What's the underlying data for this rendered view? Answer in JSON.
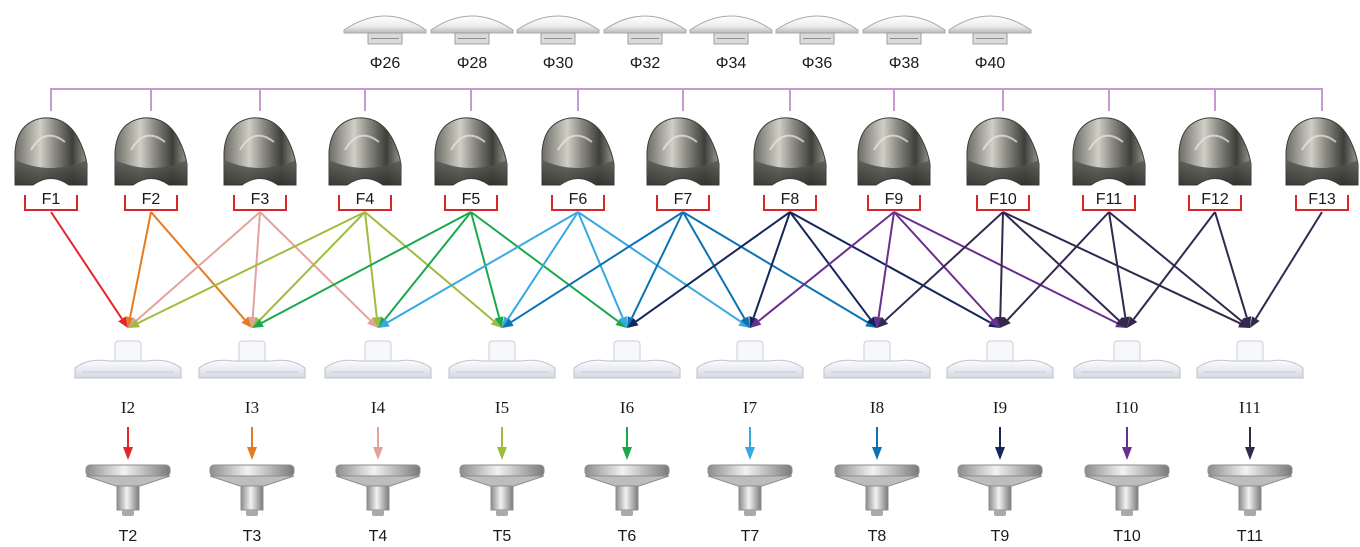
{
  "patella_components": {
    "labels": [
      "Φ26",
      "Φ28",
      "Φ30",
      "Φ32",
      "Φ34",
      "Φ36",
      "Φ38",
      "Φ40"
    ]
  },
  "femoral_components": {
    "labels": [
      "F1",
      "F2",
      "F3",
      "F4",
      "F5",
      "F6",
      "F7",
      "F8",
      "F9",
      "F10",
      "F11",
      "F12",
      "F13"
    ]
  },
  "insert_components": {
    "labels": [
      "I2",
      "I3",
      "I4",
      "I5",
      "I6",
      "I7",
      "I8",
      "I9",
      "I10",
      "I11"
    ]
  },
  "tibial_components": {
    "labels": [
      "T2",
      "T3",
      "T4",
      "T5",
      "T6",
      "T7",
      "T8",
      "T9",
      "T10",
      "T11"
    ]
  },
  "colors": {
    "patella_bracket": "#c49ad0",
    "femoral_bracket": "#d9262b",
    "femoral_arrows": [
      "#e3262b",
      "#e47b22",
      "#e3a39c",
      "#9dbd3e",
      "#1aa84f",
      "#36a9e1",
      "#0b73b4",
      "#14265c",
      "#6a2f8e",
      "#35284f",
      "#35284f",
      "#35284f",
      "#35284f"
    ],
    "insert_arrows": [
      "#e3262b",
      "#e47b22",
      "#e3a39c",
      "#9dbd3e",
      "#1aa84f",
      "#36a9e1",
      "#0b73b4",
      "#14265c",
      "#6a2f8e",
      "#35284f"
    ]
  },
  "compatibility": [
    {
      "femur": "F1",
      "inserts": [
        "I2"
      ]
    },
    {
      "femur": "F2",
      "inserts": [
        "I2",
        "I3"
      ]
    },
    {
      "femur": "F3",
      "inserts": [
        "I2",
        "I3",
        "I4"
      ]
    },
    {
      "femur": "F4",
      "inserts": [
        "I2",
        "I3",
        "I4",
        "I5"
      ]
    },
    {
      "femur": "F5",
      "inserts": [
        "I3",
        "I4",
        "I5",
        "I6"
      ]
    },
    {
      "femur": "F6",
      "inserts": [
        "I4",
        "I5",
        "I6",
        "I7"
      ]
    },
    {
      "femur": "F7",
      "inserts": [
        "I5",
        "I6",
        "I7",
        "I8"
      ]
    },
    {
      "femur": "F8",
      "inserts": [
        "I6",
        "I7",
        "I8",
        "I9"
      ]
    },
    {
      "femur": "F9",
      "inserts": [
        "I7",
        "I8",
        "I9",
        "I10"
      ]
    },
    {
      "femur": "F10",
      "inserts": [
        "I8",
        "I9",
        "I10",
        "I11"
      ]
    },
    {
      "femur": "F11",
      "inserts": [
        "I9",
        "I10",
        "I11"
      ]
    },
    {
      "femur": "F12",
      "inserts": [
        "I10",
        "I11"
      ]
    },
    {
      "femur": "F13",
      "inserts": [
        "I11"
      ]
    }
  ],
  "icons": {
    "patella": "patella-dome-icon",
    "femur": "femoral-component-icon",
    "insert": "tibial-insert-icon",
    "tibia": "tibial-tray-icon"
  }
}
